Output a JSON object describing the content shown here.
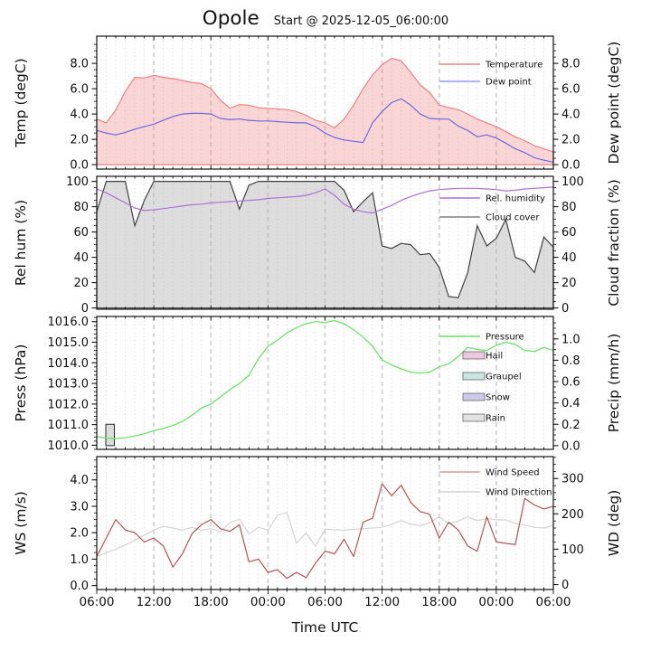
{
  "title": "Opole",
  "subtitle": "Start @ 2025-12-05_06:00:00",
  "chart_data": {
    "type": "line",
    "description": "48-hour meteogram with four stacked panels",
    "x": {
      "label": "Time UTC",
      "hours_span": 48,
      "major_step_hours": 6,
      "minor_step_hours": 1,
      "major_tick_labels": [
        "06:00",
        "12:00",
        "18:00",
        "00:00",
        "06:00",
        "12:00",
        "18:00",
        "00:00",
        "06:00"
      ]
    },
    "panels": [
      {
        "id": "temperature",
        "left_axis": {
          "label": "Temp (degC)",
          "range": [
            -0.35,
            10.15
          ],
          "major_ticks": [
            0,
            2,
            4,
            6,
            8
          ],
          "tick_labels": [
            "0.0",
            "2.0",
            "4.0",
            "6.0",
            "8.0"
          ],
          "minor_step": 0.5
        },
        "right_axis": {
          "label": "Dew point (degC)",
          "range": [
            -0.35,
            10.15
          ],
          "major_ticks": [
            0,
            2,
            4,
            6,
            8
          ],
          "tick_labels": [
            "0.0",
            "2.0",
            "4.0",
            "6.0",
            "8.0"
          ],
          "minor_step": 0.5
        },
        "series": [
          {
            "name": "Temperature",
            "style": "area",
            "axis": "left",
            "baseline": 0,
            "line_color": "#f08080",
            "fill_color": "rgba(240,128,128,0.33)",
            "values": [
              3.6,
              3.3,
              4.3,
              5.8,
              6.9,
              6.85,
              7.05,
              6.9,
              6.8,
              6.65,
              6.5,
              6.4,
              6.0,
              5.1,
              4.45,
              4.75,
              4.7,
              4.5,
              4.45,
              4.4,
              4.35,
              4.2,
              3.9,
              3.5,
              3.3,
              2.9,
              3.6,
              4.7,
              6.0,
              7.1,
              7.9,
              8.4,
              8.2,
              7.3,
              6.3,
              5.7,
              4.7,
              4.5,
              4.35,
              4.0,
              3.6,
              3.3,
              3.0,
              2.6,
              2.2,
              1.9,
              1.5,
              1.25,
              1.0
            ]
          },
          {
            "name": "Dew point",
            "style": "line",
            "axis": "right",
            "line_color": "#6a6ae0",
            "values": [
              2.7,
              2.5,
              2.35,
              2.55,
              2.8,
              3.0,
              3.2,
              3.5,
              3.8,
              4.0,
              4.05,
              4.05,
              4.0,
              3.65,
              3.55,
              3.6,
              3.5,
              3.45,
              3.45,
              3.4,
              3.35,
              3.3,
              3.3,
              3.0,
              2.5,
              2.15,
              1.95,
              1.85,
              1.75,
              3.3,
              4.2,
              4.9,
              5.2,
              4.7,
              4.0,
              3.65,
              3.6,
              3.6,
              3.05,
              2.7,
              2.2,
              2.35,
              2.1,
              1.7,
              1.25,
              0.95,
              0.55,
              0.35,
              0.2
            ]
          }
        ],
        "legend": [
          {
            "label": "Temperature",
            "swatch": "line",
            "color": "#f08080"
          },
          {
            "label": "Dew point",
            "swatch": "line",
            "color": "#9a9af0"
          }
        ]
      },
      {
        "id": "humidity-cloud",
        "left_axis": {
          "label": "Rel hum (%)",
          "range": [
            -1,
            104
          ],
          "major_ticks": [
            0,
            20,
            40,
            60,
            80,
            100
          ],
          "tick_labels": [
            "0",
            "20",
            "40",
            "60",
            "80",
            "100"
          ],
          "minor_step": 5
        },
        "right_axis": {
          "label": "Cloud fraction (%)",
          "range": [
            -1,
            104
          ],
          "major_ticks": [
            0,
            20,
            40,
            60,
            80,
            100
          ],
          "tick_labels": [
            "0",
            "20",
            "40",
            "60",
            "80",
            "100"
          ],
          "minor_step": 5
        },
        "series": [
          {
            "name": "Cloud cover",
            "style": "area",
            "axis": "right",
            "baseline": 0,
            "line_color": "#404040",
            "fill_color": "rgba(180,180,180,0.45)",
            "values": [
              76,
              100,
              100,
              100,
              65,
              85,
              100,
              100,
              100,
              100,
              100,
              100,
              100,
              100,
              100,
              78,
              97,
              100,
              100,
              100,
              100,
              100,
              100,
              100,
              100,
              100,
              93,
              76,
              84,
              91,
              49,
              47,
              51,
              50,
              42,
              43,
              32,
              9,
              8,
              28,
              65,
              49,
              55,
              70,
              40,
              37,
              28,
              56,
              48
            ]
          },
          {
            "name": "Rel. humidity",
            "style": "line",
            "axis": "left",
            "line_color": "#b06fd8",
            "values": [
              94,
              91,
              87,
              83,
              79,
              77,
              77.5,
              78.5,
              79.5,
              80.5,
              81.5,
              82,
              83,
              83.5,
              84,
              84.5,
              85,
              85.5,
              86.5,
              87,
              87.5,
              88,
              89,
              91,
              94,
              89,
              82,
              78,
              76,
              75,
              78,
              81,
              85,
              88,
              90.5,
              92.5,
              93.5,
              94,
              94.5,
              94.5,
              94.5,
              94,
              93.5,
              92.5,
              93,
              94,
              94.5,
              95,
              95.5
            ]
          }
        ],
        "legend": [
          {
            "label": "Rel. humidity",
            "swatch": "line",
            "color": "#b06fd8"
          },
          {
            "label": "Cloud cover",
            "swatch": "line",
            "color": "#808080"
          }
        ]
      },
      {
        "id": "pressure-precip",
        "left_axis": {
          "label": "Press (hPa)",
          "range": [
            1009.8,
            1016.25
          ],
          "major_ticks": [
            1010,
            1011,
            1012,
            1013,
            1014,
            1015,
            1016
          ],
          "tick_labels": [
            "1010.0",
            "1011.0",
            "1012.0",
            "1013.0",
            "1014.0",
            "1015.0",
            "1016.0"
          ],
          "minor_step": 0.2
        },
        "right_axis": {
          "label": "Precip (mm/h)",
          "range": [
            -0.035,
            1.21
          ],
          "major_ticks": [
            0,
            0.2,
            0.4,
            0.6,
            0.8,
            1.0
          ],
          "tick_labels": [
            "0.0",
            "0.2",
            "0.4",
            "0.6",
            "0.8",
            "1.0"
          ],
          "minor_step": 0.05
        },
        "series": [
          {
            "name": "Pressure",
            "style": "line",
            "axis": "left",
            "line_color": "#5fe35f",
            "values": [
              1010.42,
              1010.35,
              1010.32,
              1010.36,
              1010.45,
              1010.56,
              1010.7,
              1010.82,
              1010.96,
              1011.15,
              1011.45,
              1011.8,
              1012.0,
              1012.35,
              1012.7,
              1013.0,
              1013.4,
              1014.2,
              1014.8,
              1015.1,
              1015.45,
              1015.7,
              1015.9,
              1016.0,
              1015.95,
              1016.05,
              1015.9,
              1015.6,
              1015.25,
              1014.8,
              1014.15,
              1013.9,
              1013.7,
              1013.55,
              1013.5,
              1013.55,
              1013.8,
              1013.95,
              1014.3,
              1014.75,
              1014.65,
              1014.6,
              1014.85,
              1015.0,
              1014.9,
              1014.6,
              1014.55,
              1014.75,
              1014.6
            ]
          }
        ],
        "bars": [
          {
            "series": "Rain",
            "hour_start": 0.95,
            "hour_end": 1.85,
            "value": 0.2,
            "fill_color": "#dcdcdc",
            "line_color": "#2a2a2a"
          }
        ],
        "legend": [
          {
            "label": "Pressure",
            "swatch": "line",
            "color": "#5fe35f"
          },
          {
            "label": "Hail",
            "swatch": "box",
            "color": "#f0c6e2"
          },
          {
            "label": "Graupel",
            "swatch": "box",
            "color": "#c9e6e1"
          },
          {
            "label": "Snow",
            "swatch": "box",
            "color": "#cbcbe9"
          },
          {
            "label": "Rain",
            "swatch": "box",
            "color": "#e2e2e2"
          }
        ]
      },
      {
        "id": "wind",
        "left_axis": {
          "label": "WS (m/s)",
          "range": [
            -0.15,
            4.88
          ],
          "major_ticks": [
            0,
            1,
            2,
            3,
            4
          ],
          "tick_labels": [
            "0.0",
            "1.0",
            "2.0",
            "3.0",
            "4.0"
          ],
          "minor_step": 0.25
        },
        "right_axis": {
          "label": "WD (deg)",
          "range": [
            -14,
            362
          ],
          "major_ticks": [
            0,
            100,
            200,
            300
          ],
          "tick_labels": [
            "0",
            "100",
            "200",
            "300"
          ],
          "minor_step": 20
        },
        "series": [
          {
            "name": "Wind Direction",
            "style": "line",
            "axis": "right",
            "line_color": "#d4d4d4",
            "values": [
              79,
              90,
              100,
              112,
              125,
              140,
              154,
              165,
              160,
              154,
              162,
              154,
              158,
              150,
              175,
              185,
              143,
              162,
              154,
              196,
              204,
              117,
              146,
              108,
              157,
              155,
              154,
              156,
              158,
              160,
              162,
              170,
              181,
              171,
              167,
              175,
              192,
              171,
              179,
              192,
              181,
              187,
              183,
              183,
              173,
              168,
              162,
              160,
              167
            ]
          },
          {
            "name": "Wind Speed",
            "style": "line",
            "axis": "left",
            "line_color": "#b25454",
            "values": [
              1.1,
              1.8,
              2.5,
              2.1,
              2.0,
              1.65,
              1.8,
              1.5,
              0.7,
              1.2,
              1.95,
              2.3,
              2.5,
              2.15,
              2.05,
              2.3,
              0.9,
              1.0,
              0.5,
              0.6,
              0.27,
              0.5,
              0.3,
              0.85,
              1.3,
              1.2,
              1.75,
              1.1,
              2.4,
              2.55,
              3.85,
              3.4,
              3.8,
              3.15,
              2.8,
              2.7,
              1.8,
              2.4,
              2.1,
              1.5,
              1.3,
              2.6,
              1.65,
              1.6,
              1.55,
              3.3,
              3.05,
              2.9,
              3.0
            ]
          }
        ],
        "legend": [
          {
            "label": "Wind Speed",
            "swatch": "line",
            "color": "#dc9a9a"
          },
          {
            "label": "Wind Direction",
            "swatch": "line",
            "color": "#d4d4d4"
          }
        ]
      }
    ]
  }
}
